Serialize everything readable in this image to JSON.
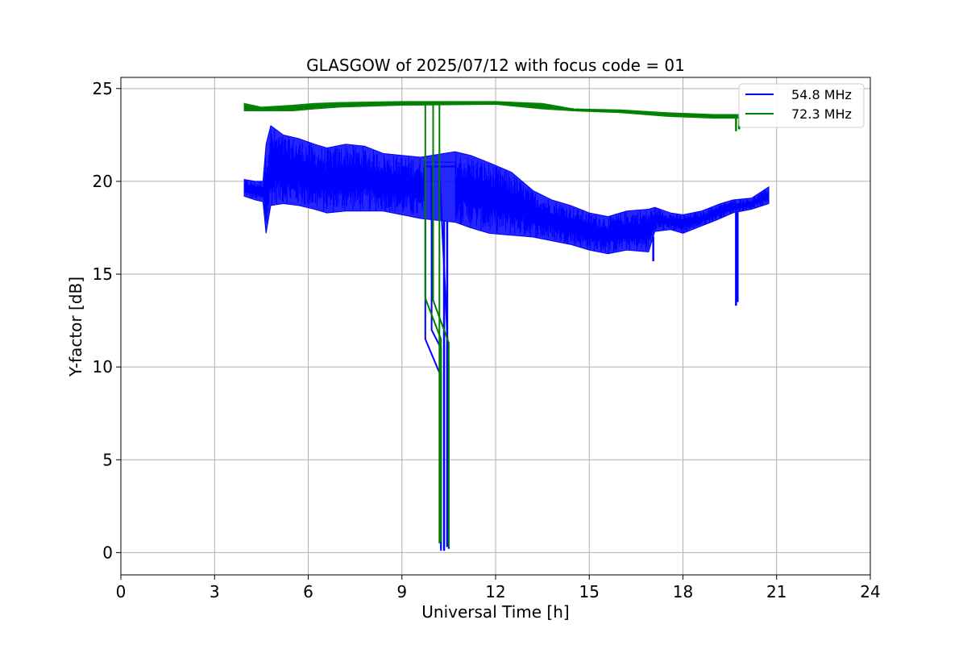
{
  "chart_data": {
    "type": "line",
    "title": "GLASGOW of 2025/07/12 with focus code = 01",
    "xlabel": "Universal Time [h]",
    "ylabel": "Y-factor [dB]",
    "xlim": [
      0,
      24
    ],
    "ylim": [
      -1.2,
      25.6
    ],
    "xticks": [
      0,
      3,
      6,
      9,
      12,
      15,
      18,
      21,
      24
    ],
    "yticks": [
      0,
      5,
      10,
      15,
      20,
      25
    ],
    "grid": true,
    "legend_position": "top-right",
    "series": [
      {
        "name": "54.8 MHz",
        "color": "#0000ff",
        "band": [
          [
            3.95,
            19.2,
            20.1
          ],
          [
            4.3,
            19.0,
            20.0
          ],
          [
            4.55,
            18.9,
            20.0
          ],
          [
            4.65,
            17.2,
            22.0
          ],
          [
            4.8,
            18.7,
            23.0
          ],
          [
            5.2,
            18.8,
            22.5
          ],
          [
            5.7,
            18.7,
            22.3
          ],
          [
            6.2,
            18.5,
            22.0
          ],
          [
            6.6,
            18.3,
            21.8
          ],
          [
            7.2,
            18.4,
            22.0
          ],
          [
            7.8,
            18.4,
            21.9
          ],
          [
            8.4,
            18.4,
            21.5
          ],
          [
            9.0,
            18.2,
            21.4
          ],
          [
            9.6,
            18.0,
            21.3
          ],
          [
            10.7,
            17.8,
            21.6
          ],
          [
            11.2,
            17.5,
            21.4
          ],
          [
            11.8,
            17.2,
            21.0
          ],
          [
            12.5,
            17.1,
            20.5
          ],
          [
            13.2,
            17.0,
            19.5
          ],
          [
            13.8,
            16.8,
            19.0
          ],
          [
            14.4,
            16.6,
            18.7
          ],
          [
            15.0,
            16.3,
            18.3
          ],
          [
            15.6,
            16.1,
            18.1
          ],
          [
            16.2,
            16.3,
            18.4
          ],
          [
            16.9,
            16.2,
            18.5
          ],
          [
            17.1,
            17.3,
            18.6
          ],
          [
            17.6,
            17.4,
            18.3
          ],
          [
            18.0,
            17.2,
            18.2
          ],
          [
            18.6,
            17.6,
            18.4
          ],
          [
            19.2,
            18.0,
            18.8
          ],
          [
            19.6,
            18.3,
            19.0
          ],
          [
            20.2,
            18.5,
            19.1
          ],
          [
            20.75,
            18.8,
            19.7
          ]
        ],
        "gap_lines": [
          [
            [
              9.75,
              20.6
            ],
            [
              9.75,
              11.5
            ],
            [
              10.25,
              9.5
            ],
            [
              10.25,
              0.1
            ]
          ],
          [
            [
              9.95,
              20.8
            ],
            [
              9.95,
              12.0
            ],
            [
              10.25,
              11.0
            ],
            [
              10.25,
              0.2
            ]
          ],
          [
            [
              10.2,
              20.7
            ],
            [
              10.5,
              10.0
            ],
            [
              10.5,
              0.2
            ]
          ],
          [
            [
              9.75,
              20.8
            ],
            [
              10.75,
              20.8
            ]
          ]
        ],
        "spikes": [
          [
            4.65,
            17.2
          ],
          [
            10.35,
            0.1
          ],
          [
            10.45,
            0.3
          ],
          [
            17.05,
            15.7
          ],
          [
            19.7,
            13.3
          ],
          [
            19.75,
            13.5
          ]
        ]
      },
      {
        "name": "72.3 MHz",
        "color": "#008000",
        "band": [
          [
            3.95,
            23.8,
            24.2
          ],
          [
            4.5,
            23.8,
            24.0
          ],
          [
            5.5,
            23.8,
            24.1
          ],
          [
            6.2,
            23.9,
            24.2
          ],
          [
            7.0,
            24.0,
            24.25
          ],
          [
            9.0,
            24.1,
            24.3
          ],
          [
            12.0,
            24.15,
            24.3
          ],
          [
            13.5,
            23.9,
            24.2
          ],
          [
            14.5,
            23.8,
            23.9
          ],
          [
            16.0,
            23.7,
            23.85
          ],
          [
            17.5,
            23.5,
            23.7
          ],
          [
            19.0,
            23.4,
            23.6
          ],
          [
            19.8,
            23.4,
            23.6
          ]
        ],
        "gap_lines": [
          [
            [
              9.75,
              24.3
            ],
            [
              9.75,
              13.7
            ],
            [
              10.25,
              11.5
            ],
            [
              10.25,
              0.6
            ]
          ],
          [
            [
              10.0,
              24.3
            ],
            [
              10.0,
              13.6
            ],
            [
              10.5,
              11.3
            ],
            [
              10.5,
              0.3
            ]
          ],
          [
            [
              10.2,
              24.3
            ],
            [
              10.2,
              0.5
            ]
          ]
        ],
        "spikes": [
          [
            19.7,
            22.7
          ],
          [
            19.8,
            22.8
          ]
        ]
      }
    ]
  }
}
